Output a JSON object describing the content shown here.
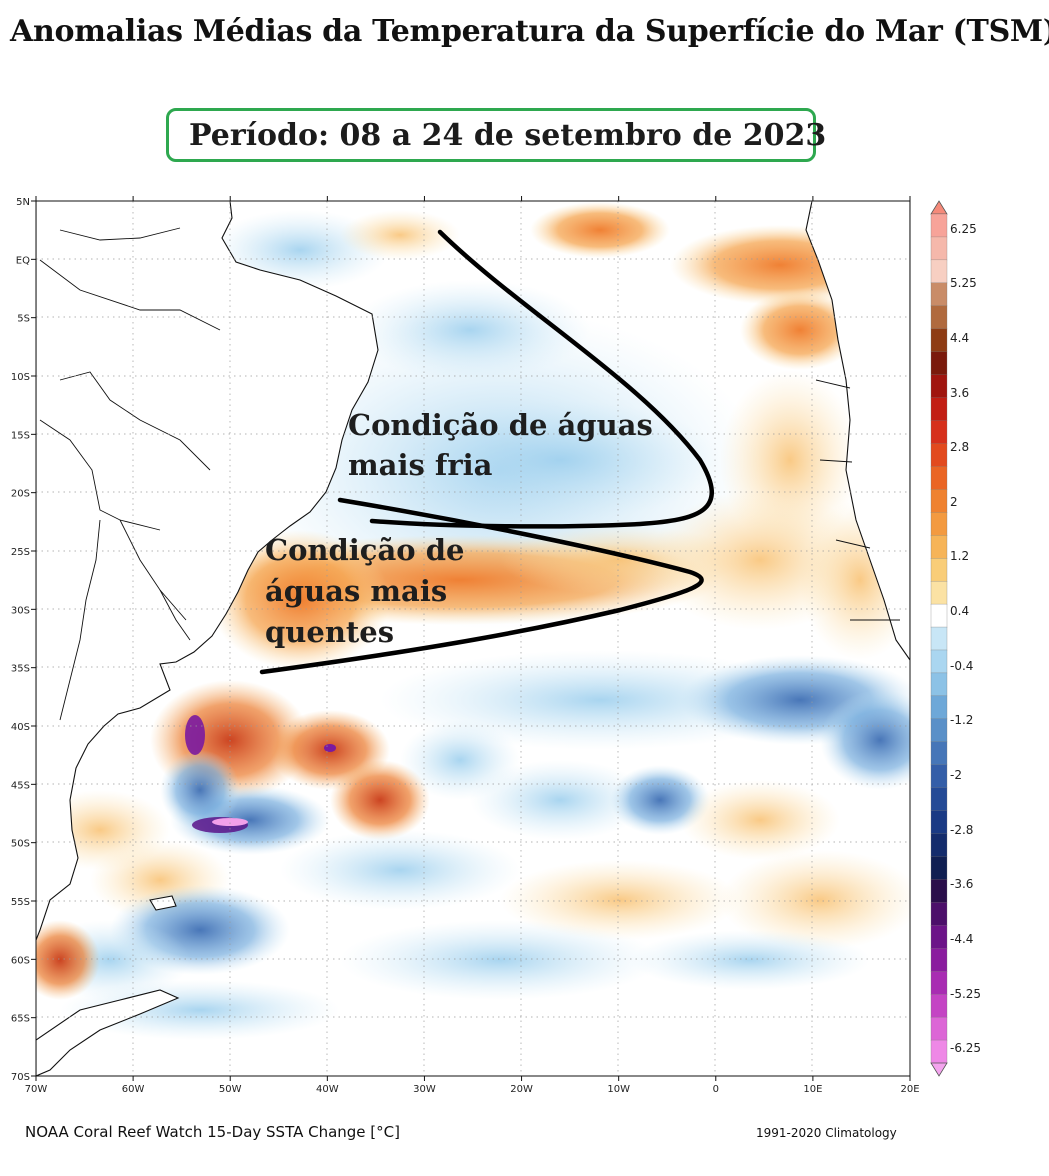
{
  "title": "Anomalias Médias da Temperatura da Superfície do Mar (TSM)",
  "period": "Período: 08 a 24 de setembro de 2023",
  "map": {
    "lon_range": [
      -70,
      20
    ],
    "lat_range": [
      -70,
      5
    ],
    "lon_ticks": [
      {
        "value": -70,
        "label": "70W"
      },
      {
        "value": -60,
        "label": "60W"
      },
      {
        "value": -50,
        "label": "50W"
      },
      {
        "value": -40,
        "label": "40W"
      },
      {
        "value": -30,
        "label": "30W"
      },
      {
        "value": -20,
        "label": "20W"
      },
      {
        "value": -10,
        "label": "10W"
      },
      {
        "value": 0,
        "label": "0"
      },
      {
        "value": 10,
        "label": "10E"
      },
      {
        "value": 20,
        "label": "20E"
      }
    ],
    "lat_ticks": [
      {
        "value": 5,
        "label": "5N"
      },
      {
        "value": 0,
        "label": "EQ"
      },
      {
        "value": -5,
        "label": "5S"
      },
      {
        "value": -10,
        "label": "10S"
      },
      {
        "value": -15,
        "label": "15S"
      },
      {
        "value": -20,
        "label": "20S"
      },
      {
        "value": -25,
        "label": "25S"
      },
      {
        "value": -30,
        "label": "30S"
      },
      {
        "value": -35,
        "label": "35S"
      },
      {
        "value": -40,
        "label": "40S"
      },
      {
        "value": -45,
        "label": "45S"
      },
      {
        "value": -50,
        "label": "50S"
      },
      {
        "value": -55,
        "label": "55S"
      },
      {
        "value": -60,
        "label": "60S"
      },
      {
        "value": -65,
        "label": "65S"
      },
      {
        "value": -70,
        "label": "70S"
      }
    ],
    "annotations": [
      {
        "lines": [
          "Condição de águas",
          "mais fria"
        ]
      },
      {
        "lines": [
          "Condição de",
          "águas mais",
          "quentes"
        ]
      }
    ]
  },
  "colorbar": {
    "labels": [
      "6.25",
      "5.25",
      "4.4",
      "3.6",
      "2.8",
      "2",
      "1.2",
      "0.4",
      "-0.4",
      "-1.2",
      "-2",
      "-2.8",
      "-3.6",
      "-4.4",
      "-5.25",
      "-6.25"
    ],
    "colors": [
      "#f7a399",
      "#f5b8ab",
      "#f7cfc2",
      "#c98c68",
      "#b06a3e",
      "#8e3c14",
      "#7a1a0c",
      "#a0150f",
      "#c21e14",
      "#d6301c",
      "#e24a1e",
      "#ea6524",
      "#ef8230",
      "#f39a40",
      "#f6b458",
      "#f9cd78",
      "#fbe2a4",
      "#ffffff",
      "#c8e6f6",
      "#aad6f0",
      "#8cc2e6",
      "#6ea8d8",
      "#5a90c8",
      "#4676b8",
      "#345ea8",
      "#244a96",
      "#1a3a84",
      "#142c6c",
      "#101f52",
      "#2a0e4a",
      "#4c0f6a",
      "#6c1488",
      "#8a1c9e",
      "#a82cb2",
      "#c444c4",
      "#dc66d6",
      "#ee88e6"
    ],
    "tip_top_color": "#f58a7a",
    "tip_bottom_color": "#f4a4ee"
  },
  "footer": {
    "left": "NOAA Coral Reef Watch 15-Day SSTA Change [°C]",
    "right": "1991-2020 Climatology"
  }
}
